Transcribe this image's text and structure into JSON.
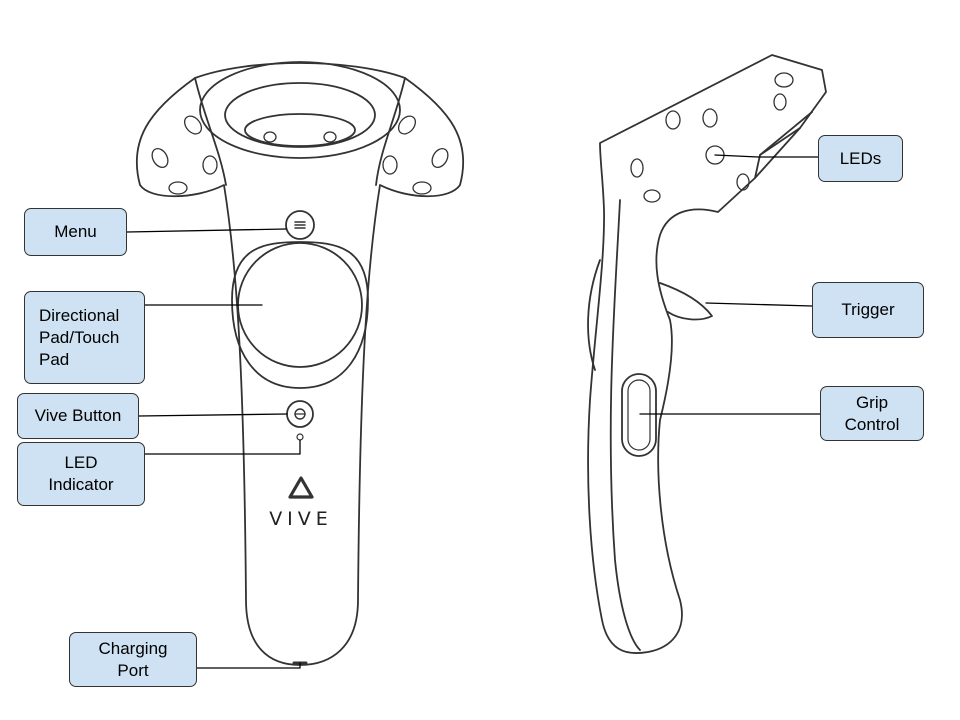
{
  "labels": {
    "menu": "Menu",
    "dpad": "Directional\nPad/Touch\nPad",
    "vive_button": "Vive Button",
    "led_indicator": "LED\nIndicator",
    "charging_port": "Charging\nPort",
    "leds": "LEDs",
    "trigger": "Trigger",
    "grip": "Grip\nControl"
  },
  "brand": "VIVE",
  "colors": {
    "label_fill": "#cfe2f3",
    "outline": "#333333"
  }
}
